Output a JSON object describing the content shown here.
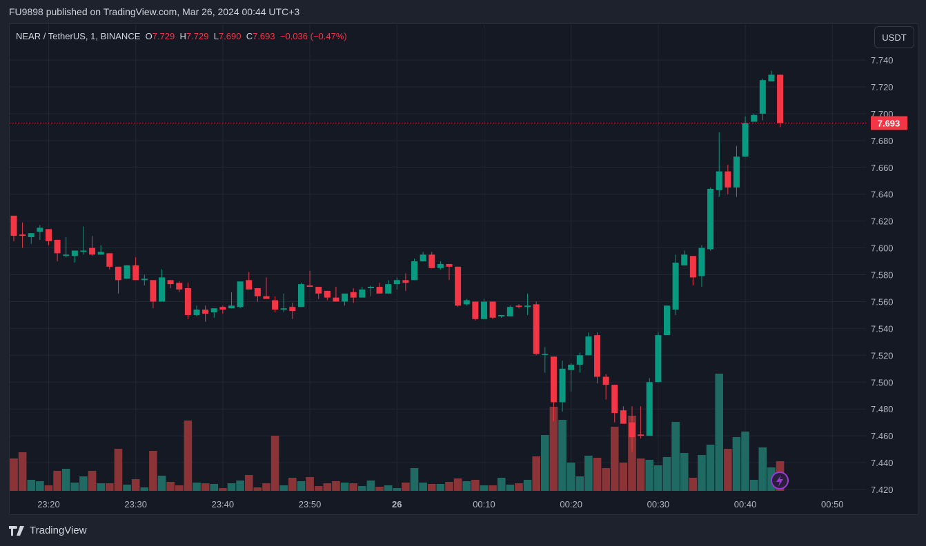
{
  "header": {
    "published": "FU9898 published on TradingView.com, Mar 26, 2024 00:44 UTC+3"
  },
  "legend": {
    "symbol": "NEAR / TetherUS, 1, BINANCE",
    "o_label": "O",
    "o": "7.729",
    "h_label": "H",
    "h": "7.729",
    "l_label": "L",
    "l": "7.690",
    "c_label": "C",
    "c": "7.693",
    "change": "−0.036 (−0.47%)"
  },
  "currency_button": "USDT",
  "last_price_label": "7.693",
  "footer": {
    "brand": "TradingView"
  },
  "colors": {
    "up": "#089981",
    "down": "#f23645",
    "vol_up": "#1f6b64",
    "vol_down": "#8a3438",
    "background": "#151924",
    "grid": "#232733",
    "alert_icon": "#9c3ad6"
  },
  "icons": {
    "alert": "lightning-icon",
    "logo": "tradingview-logo"
  },
  "chart_data": {
    "type": "candlestick",
    "symbol": "NEAR / TetherUS",
    "interval": "1",
    "exchange": "BINANCE",
    "ylim": [
      7.42,
      7.74
    ],
    "y_ticks": [
      "7.420",
      "7.440",
      "7.460",
      "7.480",
      "7.500",
      "7.520",
      "7.540",
      "7.560",
      "7.580",
      "7.600",
      "7.620",
      "7.640",
      "7.660",
      "7.680",
      "7.700",
      "7.720",
      "7.740"
    ],
    "x_ticks": [
      "23:20",
      "23:30",
      "23:40",
      "23:50",
      "26",
      "00:10",
      "00:20",
      "00:30",
      "00:40",
      "00:50"
    ],
    "x_tick_minutes_from_start": [
      4,
      14,
      24,
      34,
      44,
      54,
      64,
      74,
      84,
      94
    ],
    "start_time": "23:16",
    "grid": true,
    "last_price": 7.693,
    "ohlc_columns": [
      "open",
      "high",
      "low",
      "close"
    ],
    "candles": [
      [
        7.624,
        7.624,
        7.605,
        7.609
      ],
      [
        7.61,
        7.619,
        7.6,
        7.609
      ],
      [
        7.608,
        7.611,
        7.603,
        7.611
      ],
      [
        7.612,
        7.617,
        7.606,
        7.615
      ],
      [
        7.614,
        7.614,
        7.602,
        7.605
      ],
      [
        7.606,
        7.606,
        7.59,
        7.596
      ],
      [
        7.594,
        7.608,
        7.593,
        7.595
      ],
      [
        7.594,
        7.598,
        7.589,
        7.598
      ],
      [
        7.597,
        7.616,
        7.595,
        7.598
      ],
      [
        7.6,
        7.609,
        7.594,
        7.595
      ],
      [
        7.595,
        7.602,
        7.595,
        7.597
      ],
      [
        7.596,
        7.596,
        7.584,
        7.586
      ],
      [
        7.586,
        7.586,
        7.566,
        7.576
      ],
      [
        7.577,
        7.587,
        7.577,
        7.587
      ],
      [
        7.587,
        7.593,
        7.576,
        7.576
      ],
      [
        7.576,
        7.58,
        7.572,
        7.577
      ],
      [
        7.576,
        7.576,
        7.555,
        7.56
      ],
      [
        7.56,
        7.584,
        7.56,
        7.578
      ],
      [
        7.576,
        7.576,
        7.57,
        7.573
      ],
      [
        7.574,
        7.575,
        7.567,
        7.569
      ],
      [
        7.57,
        7.574,
        7.547,
        7.55
      ],
      [
        7.55,
        7.557,
        7.549,
        7.554
      ],
      [
        7.554,
        7.557,
        7.545,
        7.551
      ],
      [
        7.552,
        7.555,
        7.548,
        7.555
      ],
      [
        7.556,
        7.557,
        7.551,
        7.554
      ],
      [
        7.555,
        7.567,
        7.555,
        7.557
      ],
      [
        7.556,
        7.575,
        7.555,
        7.575
      ],
      [
        7.576,
        7.582,
        7.569,
        7.569
      ],
      [
        7.57,
        7.57,
        7.56,
        7.564
      ],
      [
        7.564,
        7.578,
        7.562,
        7.562
      ],
      [
        7.561,
        7.564,
        7.552,
        7.554
      ],
      [
        7.554,
        7.566,
        7.552,
        7.555
      ],
      [
        7.556,
        7.559,
        7.547,
        7.553
      ],
      [
        7.556,
        7.574,
        7.556,
        7.573
      ],
      [
        7.572,
        7.583,
        7.571,
        7.571
      ],
      [
        7.571,
        7.571,
        7.562,
        7.566
      ],
      [
        7.568,
        7.568,
        7.561,
        7.563
      ],
      [
        7.563,
        7.571,
        7.56,
        7.56
      ],
      [
        7.56,
        7.566,
        7.557,
        7.566
      ],
      [
        7.567,
        7.57,
        7.559,
        7.563
      ],
      [
        7.563,
        7.571,
        7.563,
        7.569
      ],
      [
        7.57,
        7.572,
        7.564,
        7.571
      ],
      [
        7.571,
        7.574,
        7.566,
        7.566
      ],
      [
        7.566,
        7.576,
        7.566,
        7.573
      ],
      [
        7.573,
        7.578,
        7.569,
        7.576
      ],
      [
        7.576,
        7.581,
        7.568,
        7.574
      ],
      [
        7.576,
        7.592,
        7.576,
        7.59
      ],
      [
        7.59,
        7.597,
        7.59,
        7.595
      ],
      [
        7.595,
        7.597,
        7.585,
        7.585
      ],
      [
        7.585,
        7.59,
        7.584,
        7.588
      ],
      [
        7.588,
        7.588,
        7.576,
        7.586
      ],
      [
        7.586,
        7.586,
        7.556,
        7.557
      ],
      [
        7.558,
        7.562,
        7.557,
        7.561
      ],
      [
        7.56,
        7.56,
        7.546,
        7.547
      ],
      [
        7.547,
        7.562,
        7.547,
        7.56
      ],
      [
        7.56,
        7.56,
        7.547,
        7.548
      ],
      [
        7.549,
        7.55,
        7.548,
        7.55
      ],
      [
        7.549,
        7.557,
        7.549,
        7.556
      ],
      [
        7.557,
        7.558,
        7.555,
        7.556
      ],
      [
        7.556,
        7.566,
        7.55,
        7.557
      ],
      [
        7.558,
        7.56,
        7.52,
        7.521
      ],
      [
        7.521,
        7.526,
        7.507,
        7.521
      ],
      [
        7.519,
        7.519,
        7.471,
        7.485
      ],
      [
        7.485,
        7.516,
        7.478,
        7.51
      ],
      [
        7.509,
        7.514,
        7.493,
        7.513
      ],
      [
        7.513,
        7.522,
        7.507,
        7.52
      ],
      [
        7.52,
        7.537,
        7.52,
        7.534
      ],
      [
        7.535,
        7.537,
        7.499,
        7.504
      ],
      [
        7.504,
        7.506,
        7.487,
        7.498
      ],
      [
        7.498,
        7.498,
        7.47,
        7.477
      ],
      [
        7.479,
        7.482,
        7.469,
        7.469
      ],
      [
        7.47,
        7.482,
        7.448,
        7.459
      ],
      [
        7.461,
        7.482,
        7.458,
        7.46
      ],
      [
        7.46,
        7.503,
        7.46,
        7.5
      ],
      [
        7.5,
        7.537,
        7.5,
        7.535
      ],
      [
        7.535,
        7.557,
        7.535,
        7.557
      ],
      [
        7.554,
        7.595,
        7.55,
        7.589
      ],
      [
        7.587,
        7.598,
        7.587,
        7.595
      ],
      [
        7.594,
        7.594,
        7.572,
        7.578
      ],
      [
        7.579,
        7.602,
        7.571,
        7.6
      ],
      [
        7.599,
        7.645,
        7.598,
        7.644
      ],
      [
        7.643,
        7.686,
        7.638,
        7.657
      ],
      [
        7.657,
        7.662,
        7.64,
        7.645
      ],
      [
        7.645,
        7.676,
        7.638,
        7.668
      ],
      [
        7.668,
        7.698,
        7.668,
        7.693
      ],
      [
        7.694,
        7.7,
        7.694,
        7.699
      ],
      [
        7.7,
        7.726,
        7.695,
        7.725
      ],
      [
        7.724,
        7.732,
        7.724,
        7.729
      ],
      [
        7.729,
        7.729,
        7.69,
        7.693
      ]
    ],
    "volume_relative": [
      47,
      56,
      16,
      14,
      8,
      29,
      32,
      12,
      21,
      29,
      11,
      11,
      61,
      9,
      17,
      5,
      58,
      22,
      13,
      8,
      102,
      12,
      11,
      10,
      4,
      11,
      15,
      23,
      5,
      11,
      80,
      8,
      19,
      14,
      20,
      7,
      11,
      14,
      12,
      11,
      7,
      15,
      6,
      8,
      4,
      12,
      33,
      12,
      10,
      10,
      13,
      18,
      14,
      16,
      8,
      8,
      19,
      9,
      11,
      16,
      50,
      81,
      122,
      103,
      41,
      21,
      51,
      48,
      33,
      93,
      41,
      109,
      47,
      45,
      37,
      49,
      100,
      55,
      19,
      52,
      67,
      170,
      61,
      78,
      86,
      16,
      63,
      34,
      43
    ],
    "volume_up": [
      false,
      false,
      true,
      true,
      false,
      false,
      true,
      true,
      true,
      false,
      true,
      false,
      false,
      true,
      false,
      true,
      false,
      true,
      false,
      false,
      false,
      true,
      false,
      true,
      false,
      true,
      true,
      false,
      false,
      false,
      false,
      true,
      false,
      true,
      false,
      false,
      false,
      false,
      true,
      false,
      true,
      true,
      false,
      true,
      true,
      false,
      true,
      true,
      false,
      true,
      false,
      false,
      true,
      false,
      true,
      false,
      true,
      true,
      false,
      true,
      false,
      true,
      false,
      true,
      true,
      true,
      true,
      false,
      false,
      false,
      false,
      false,
      false,
      true,
      true,
      true,
      true,
      true,
      false,
      true,
      true,
      true,
      false,
      true,
      true,
      true,
      true,
      true,
      false
    ]
  }
}
